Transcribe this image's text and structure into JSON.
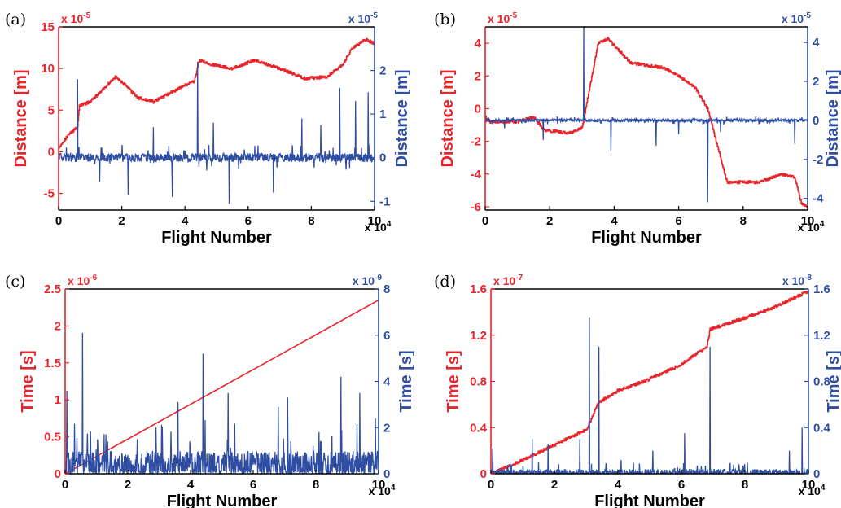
{
  "colors": {
    "left_series": "#e8232a",
    "right_series": "#2f4ea2",
    "axis": "#000000"
  },
  "chart_data": [
    {
      "panel": "(a)",
      "type": "line",
      "xlabel": "Flight Number",
      "x_exponent": "x 10",
      "x_exponent_power": "4",
      "xlim": [
        0,
        10
      ],
      "xticks": [
        0,
        2,
        4,
        6,
        8,
        10
      ],
      "left_axis": {
        "label": "Distance [m]",
        "exponent": "x 10",
        "exponent_power": "-5",
        "ylim": [
          -7,
          15
        ],
        "ticks": [
          -5,
          0,
          5,
          10,
          15
        ]
      },
      "right_axis": {
        "label": "Distance [m]",
        "exponent": "x 10",
        "exponent_power": "-5",
        "ylim": [
          -1.2,
          3.0
        ],
        "ticks": [
          -1,
          0,
          1,
          2
        ]
      },
      "series": [
        {
          "axis": "left",
          "style": "step",
          "x": [
            0,
            0.3,
            0.6,
            0.65,
            1.0,
            1.4,
            1.8,
            2.1,
            2.5,
            3.0,
            3.5,
            4.0,
            4.3,
            4.45,
            4.8,
            5.5,
            6.2,
            7.0,
            7.8,
            8.5,
            9.0,
            9.3,
            9.7,
            10
          ],
          "y": [
            0.5,
            2,
            3,
            5.5,
            6,
            7.5,
            9,
            8,
            6.5,
            6,
            7,
            8,
            8.5,
            11,
            10.5,
            10,
            11,
            10,
            8.8,
            9,
            10.5,
            12.5,
            13.5,
            13
          ]
        },
        {
          "axis": "right",
          "style": "noise",
          "base": 0.0,
          "noise": 0.1,
          "spikes": [
            [
              0.6,
              1.8
            ],
            [
              4.4,
              2.2
            ],
            [
              5.4,
              -1.05
            ],
            [
              3.6,
              -0.9
            ],
            [
              2.2,
              -0.85
            ],
            [
              6.8,
              -0.8
            ],
            [
              8.9,
              1.6
            ],
            [
              9.8,
              1.5
            ],
            [
              9.4,
              1.3
            ],
            [
              7.7,
              0.9
            ],
            [
              8.3,
              0.75
            ],
            [
              3.0,
              0.7
            ],
            [
              1.3,
              -0.55
            ],
            [
              4.9,
              0.8
            ]
          ]
        }
      ]
    },
    {
      "panel": "(b)",
      "type": "line",
      "xlabel": "Flight Number",
      "x_exponent": "x 10",
      "x_exponent_power": "4",
      "xlim": [
        0,
        10
      ],
      "xticks": [
        0,
        2,
        4,
        6,
        8,
        10
      ],
      "left_axis": {
        "label": "Distance [m]",
        "exponent": "x 10",
        "exponent_power": "-5",
        "ylim": [
          -6.2,
          5
        ],
        "ticks": [
          -6,
          -4,
          -2,
          0,
          2,
          4
        ]
      },
      "right_axis": {
        "label": "Distance [m]",
        "exponent": "x 10",
        "exponent_power": "-5",
        "ylim": [
          -4.6,
          4.8
        ],
        "ticks": [
          -4,
          -2,
          0,
          2,
          4
        ]
      },
      "series": [
        {
          "axis": "left",
          "style": "step",
          "x": [
            0,
            0.1,
            1.0,
            1.5,
            1.8,
            2.6,
            3.0,
            3.5,
            3.8,
            4.5,
            5.5,
            6.0,
            6.5,
            6.9,
            7.5,
            8.5,
            9.2,
            9.6,
            9.8,
            10
          ],
          "y": [
            -0.5,
            -0.8,
            -0.8,
            -0.5,
            -1.3,
            -1.5,
            -1.2,
            4.0,
            4.3,
            2.8,
            2.5,
            2.0,
            1.3,
            0.0,
            -4.5,
            -4.5,
            -4.0,
            -4.2,
            -5.8,
            -6.0
          ]
        },
        {
          "axis": "right",
          "style": "noise",
          "base": 0.0,
          "noise": 0.07,
          "spikes": [
            [
              3.05,
              4.8
            ],
            [
              6.9,
              -4.2
            ],
            [
              3.9,
              -1.6
            ],
            [
              5.3,
              -1.3
            ],
            [
              1.8,
              -1.0
            ],
            [
              9.6,
              -1.2
            ],
            [
              6.0,
              -0.7
            ],
            [
              7.3,
              -0.6
            ],
            [
              0.6,
              -0.4
            ]
          ]
        }
      ]
    },
    {
      "panel": "(c)",
      "type": "line",
      "xlabel": "Flight Number",
      "x_exponent": "x 10",
      "x_exponent_power": "4",
      "xlim": [
        0,
        10
      ],
      "xticks": [
        0,
        2,
        4,
        6,
        8,
        10
      ],
      "left_axis": {
        "label": "Time [s]",
        "exponent": "x 10",
        "exponent_power": "-6",
        "ylim": [
          0,
          2.5
        ],
        "ticks": [
          0,
          0.5,
          1,
          1.5,
          2,
          2.5
        ]
      },
      "right_axis": {
        "label": "Time [s]",
        "exponent": "x 10",
        "exponent_power": "-9",
        "ylim": [
          0,
          8
        ],
        "ticks": [
          0,
          2,
          4,
          6,
          8
        ]
      },
      "series": [
        {
          "axis": "left",
          "style": "line",
          "x": [
            0,
            10
          ],
          "y": [
            0.0,
            2.35
          ]
        },
        {
          "axis": "right",
          "style": "noise",
          "base": 0.3,
          "noise": 0.7,
          "spikes": [
            [
              0.55,
              6.1
            ],
            [
              4.4,
              5.2
            ],
            [
              0.05,
              3.6
            ],
            [
              3.6,
              3.1
            ],
            [
              5.2,
              3.5
            ],
            [
              7.1,
              3.3
            ],
            [
              8.8,
              4.2
            ],
            [
              9.4,
              3.5
            ],
            [
              9.9,
              2.4
            ],
            [
              6.8,
              2.9
            ],
            [
              2.9,
              2.0
            ],
            [
              1.3,
              1.7
            ],
            [
              2.3,
              1.5
            ],
            [
              8.1,
              1.8
            ]
          ]
        }
      ]
    },
    {
      "panel": "(d)",
      "type": "line",
      "xlabel": "Flight Number",
      "x_exponent": "x 10",
      "x_exponent_power": "4",
      "xlim": [
        0,
        10
      ],
      "xticks": [
        0,
        2,
        4,
        6,
        8,
        10
      ],
      "left_axis": {
        "label": "Time [s]",
        "exponent": "x 10",
        "exponent_power": "-7",
        "ylim": [
          0,
          1.6
        ],
        "ticks": [
          0,
          0.4,
          0.8,
          1.2,
          1.6
        ],
        "tick_labels": [
          "0",
          "0.4",
          "0.8",
          "1.2",
          "1.6"
        ]
      },
      "right_axis": {
        "label": "Time [s]",
        "exponent": "x 10",
        "exponent_power": "-8",
        "ylim": [
          0,
          1.6
        ],
        "ticks": [
          0,
          0.4,
          0.8,
          1.2,
          1.6
        ],
        "tick_labels": [
          "0",
          "0.4",
          "0.8",
          "1.2",
          "1.6"
        ]
      },
      "series": [
        {
          "axis": "left",
          "style": "step",
          "x": [
            0,
            1.0,
            2.0,
            3.0,
            3.4,
            4.0,
            5.0,
            6.0,
            6.8,
            6.9,
            8.0,
            9.0,
            9.5,
            10
          ],
          "y": [
            0.0,
            0.12,
            0.25,
            0.38,
            0.62,
            0.72,
            0.82,
            0.95,
            1.1,
            1.25,
            1.35,
            1.45,
            1.52,
            1.58
          ]
        },
        {
          "axis": "right",
          "style": "noise",
          "base": 0.01,
          "noise": 0.03,
          "spikes": [
            [
              3.1,
              1.35
            ],
            [
              3.4,
              1.1
            ],
            [
              6.9,
              1.1
            ],
            [
              6.1,
              0.35
            ],
            [
              9.8,
              0.4
            ],
            [
              2.8,
              0.3
            ],
            [
              1.3,
              0.3
            ],
            [
              1.8,
              0.26
            ],
            [
              5.1,
              0.2
            ],
            [
              0.05,
              0.22
            ],
            [
              9.4,
              0.2
            ],
            [
              4.1,
              0.12
            ]
          ]
        }
      ]
    }
  ]
}
